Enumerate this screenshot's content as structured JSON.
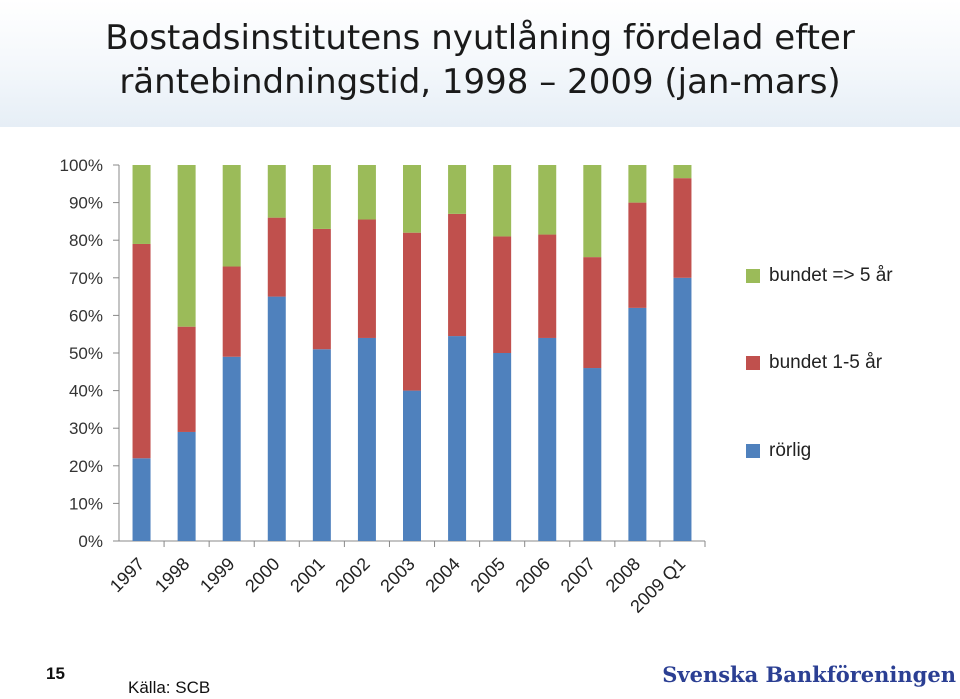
{
  "title": [
    "Bostadsinstitutens nyutlåning fördelad efter",
    "räntebindningstid, 1998 – 2009 (jan-mars)"
  ],
  "page_number": "15",
  "source": "Källa: SCB",
  "brand": "Svenska Bankföreningen",
  "colors": {
    "rorlig": "#4f81bd",
    "bundet_1_5": "#c0504d",
    "bundet_5": "#9bbb59"
  },
  "chart_data": {
    "type": "bar",
    "stacked": true,
    "categories": [
      "1997",
      "1998",
      "1999",
      "2000",
      "2001",
      "2002",
      "2003",
      "2004",
      "2005",
      "2006",
      "2007",
      "2008",
      "2009 Q1"
    ],
    "series": [
      {
        "name": "rörlig",
        "key": "rorlig",
        "values": [
          22,
          29,
          49,
          65,
          51,
          54,
          40,
          54.5,
          50,
          54,
          46,
          62,
          70
        ]
      },
      {
        "name": "bundet 1-5 år",
        "key": "bundet_1_5",
        "values": [
          57,
          28,
          24,
          21,
          32,
          31.5,
          42,
          32.5,
          31,
          27.5,
          29.5,
          28,
          26.5
        ]
      },
      {
        "name": "bundet => 5 år",
        "key": "bundet_5",
        "values": [
          21,
          43,
          27,
          14,
          17,
          14.5,
          18,
          13,
          19,
          18.5,
          24.5,
          10,
          3.5
        ]
      }
    ],
    "y_ticks": [
      "0%",
      "10%",
      "20%",
      "30%",
      "40%",
      "50%",
      "60%",
      "70%",
      "80%",
      "90%",
      "100%"
    ],
    "ylim": [
      0,
      100
    ],
    "legend_position": "right"
  }
}
